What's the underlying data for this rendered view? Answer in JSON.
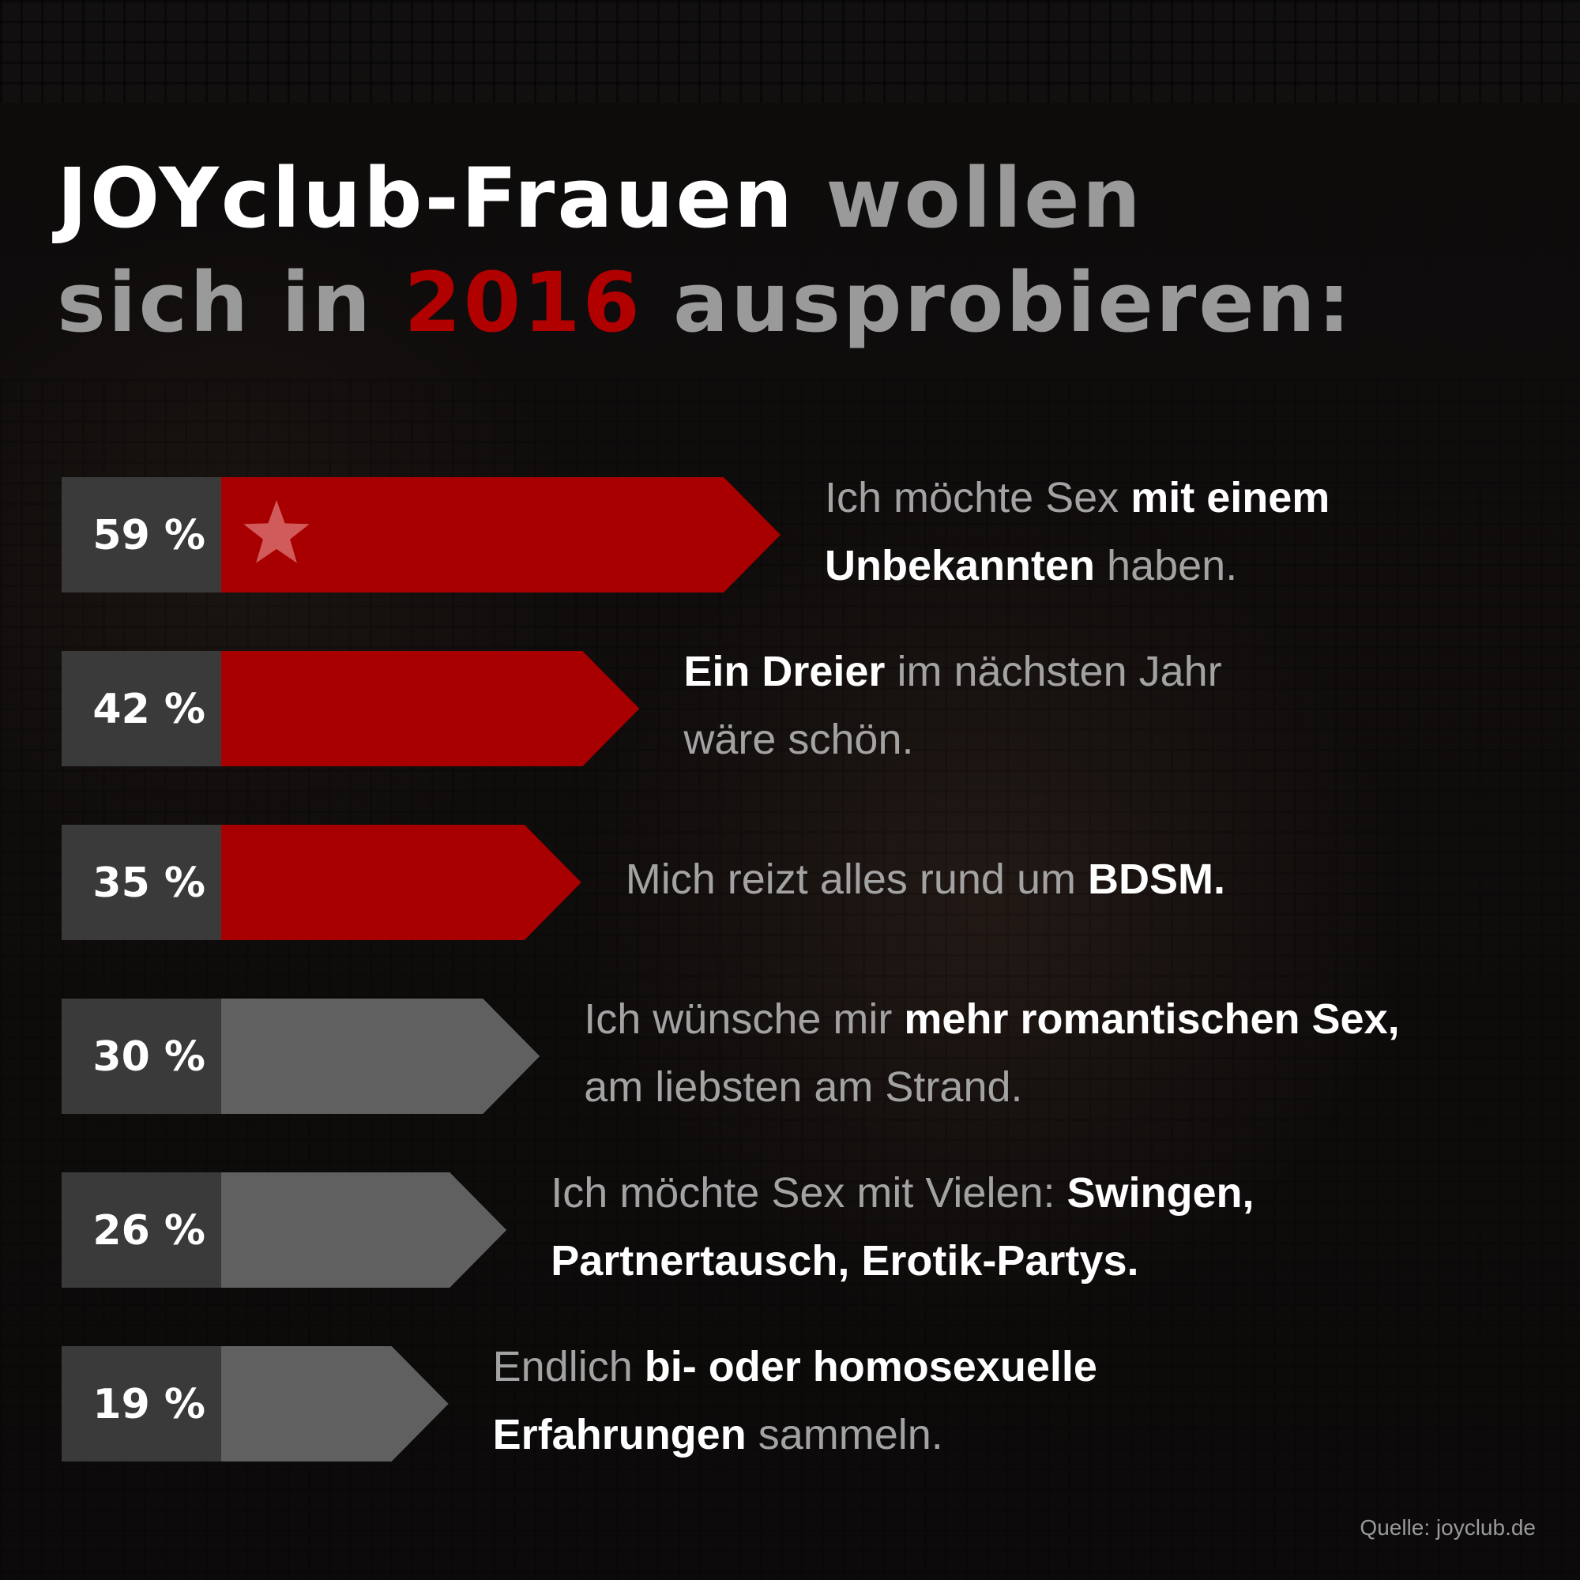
{
  "title": {
    "line1_part1": "JOYclub-Frauen",
    "line1_part2": "wollen",
    "line2_part1": "sich in",
    "line2_year": "2016",
    "line2_part3": "ausprobieren:"
  },
  "colors": {
    "highlight_bar": "#a80000",
    "other_bar": "#606060",
    "percent_box": "#3a3a3a",
    "year": "#b00000"
  },
  "chart_data": {
    "type": "bar",
    "orientation": "horizontal",
    "unit": "%",
    "categories": [
      "Ich möchte Sex mit einem Unbekannten haben.",
      "Ein Dreier im nächsten Jahr wäre schön.",
      "Mich reizt alles rund um BDSM.",
      "Ich wünsche mir mehr romantischen Sex, am liebsten am Strand.",
      "Ich möchte Sex mit Vielen: Swingen, Partnertausch, Erotik-Partys.",
      "Endlich bi- oder homosexuelle Erfahrungen sammeln."
    ],
    "values": [
      59,
      42,
      35,
      30,
      26,
      19
    ],
    "value_labels": [
      "59 %",
      "42 %",
      "35 %",
      "30 %",
      "26 %",
      "19 %"
    ],
    "highlight": [
      true,
      true,
      true,
      false,
      false,
      false
    ],
    "star_on": 0,
    "labels": [
      [
        {
          "t": "Ich möchte Sex ",
          "b": false
        },
        {
          "t": "mit einem",
          "b": true
        },
        {
          "br": true
        },
        {
          "t": "Unbekannten",
          "b": true
        },
        {
          "t": " haben.",
          "b": false
        }
      ],
      [
        {
          "t": "Ein Dreier",
          "b": true
        },
        {
          "t": " im nächsten Jahr",
          "b": false
        },
        {
          "br": true
        },
        {
          "t": "wäre schön.",
          "b": false
        }
      ],
      [
        {
          "t": "Mich reizt alles rund um ",
          "b": false
        },
        {
          "t": "BDSM.",
          "b": true
        }
      ],
      [
        {
          "t": "Ich wünsche mir ",
          "b": false
        },
        {
          "t": "mehr romantischen Sex,",
          "b": true
        },
        {
          "br": true
        },
        {
          "t": "am liebsten am Strand.",
          "b": false
        }
      ],
      [
        {
          "t": "Ich möchte Sex mit Vielen: ",
          "b": false
        },
        {
          "t": "Swingen,",
          "b": true
        },
        {
          "br": true
        },
        {
          "t": "Partnertausch, Erotik-Partys.",
          "b": true
        }
      ],
      [
        {
          "t": "Endlich ",
          "b": false
        },
        {
          "t": "bi- oder homosexuelle",
          "b": true
        },
        {
          "br": true
        },
        {
          "t": "Erfahrungen",
          "b": true
        },
        {
          "t": " sammeln.",
          "b": false
        }
      ]
    ]
  },
  "source": "Quelle: joyclub.de"
}
